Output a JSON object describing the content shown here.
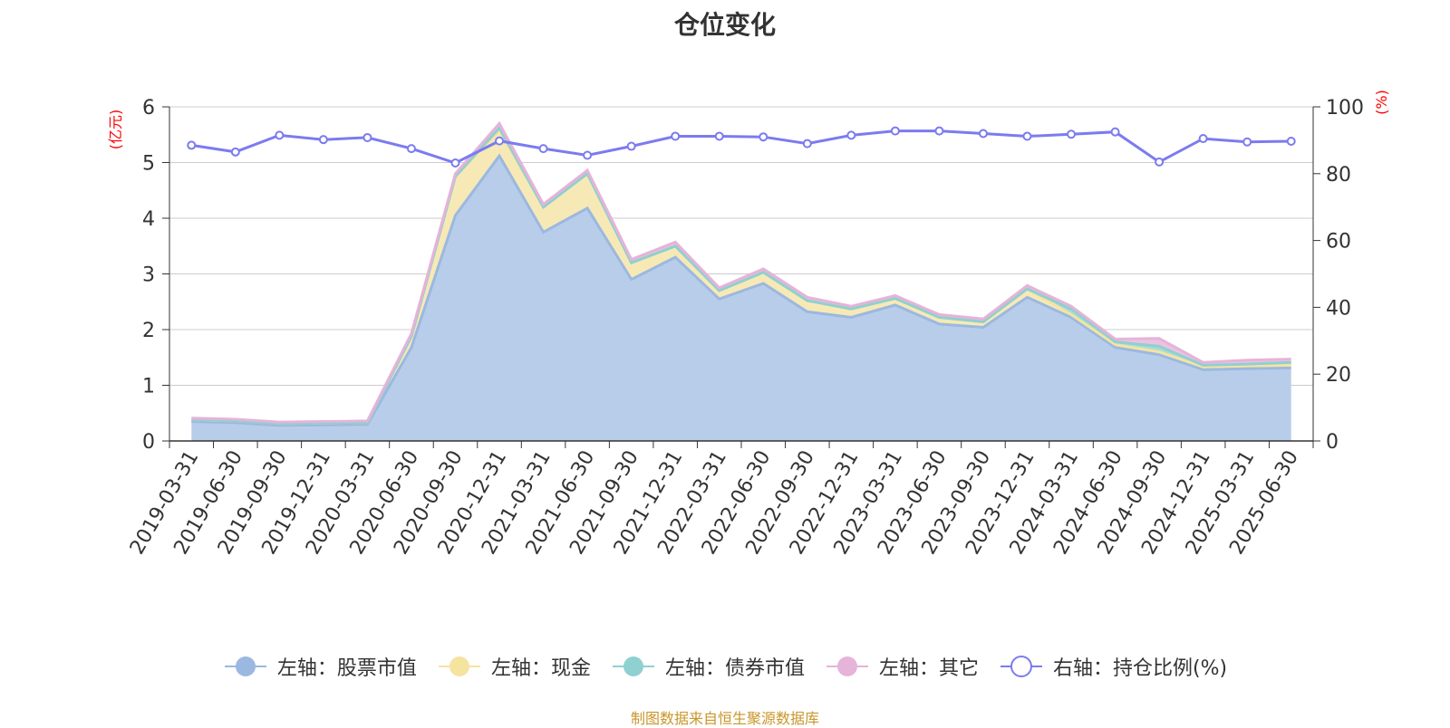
{
  "title": "仓位变化",
  "footer": "制图数据来自恒生聚源数据库",
  "axes": {
    "left_unit": "(亿元)",
    "right_unit": "(%)"
  },
  "colors": {
    "stock": "#9bb8e0",
    "stock_fill": "#b8cdea",
    "cash": "#f5e3a0",
    "cash_fill": "#f7e9b5",
    "bond": "#8fd0d0",
    "bond_fill": "#a8dcd9",
    "other": "#e6b3d9",
    "other_fill": "#ebc2e2",
    "ratio": "#7b7bf0",
    "axis_label_red": "#ff0000",
    "grid": "#cccccc"
  },
  "chart_data": {
    "type": "area",
    "title": "仓位变化",
    "categories": [
      "2019-03-31",
      "2019-06-30",
      "2019-09-30",
      "2019-12-31",
      "2020-03-31",
      "2020-06-30",
      "2020-09-30",
      "2020-12-31",
      "2021-03-31",
      "2021-06-30",
      "2021-09-30",
      "2021-12-31",
      "2022-03-31",
      "2022-06-30",
      "2022-09-30",
      "2022-12-31",
      "2023-03-31",
      "2023-06-30",
      "2023-09-30",
      "2023-12-31",
      "2024-03-31",
      "2024-06-30",
      "2024-09-30",
      "2024-12-31",
      "2025-03-31",
      "2025-06-30"
    ],
    "left_axis": {
      "label": "(亿元)",
      "ylim": [
        0,
        6
      ],
      "ticks": [
        0,
        1,
        2,
        3,
        4,
        5,
        6
      ]
    },
    "right_axis": {
      "label": "(%)",
      "ylim": [
        0,
        100
      ],
      "ticks": [
        0,
        20,
        40,
        60,
        80,
        100
      ]
    },
    "series": [
      {
        "name": "左轴：股票市值",
        "axis": "left",
        "type": "area",
        "values": [
          0.35,
          0.33,
          0.28,
          0.29,
          0.3,
          1.68,
          4.05,
          5.12,
          3.75,
          4.18,
          2.9,
          3.3,
          2.55,
          2.83,
          2.32,
          2.22,
          2.44,
          2.1,
          2.04,
          2.58,
          2.22,
          1.68,
          1.55,
          1.28,
          1.3,
          1.31
        ]
      },
      {
        "name": "左轴：现金",
        "axis": "left",
        "type": "area",
        "values": [
          0.03,
          0.03,
          0.03,
          0.03,
          0.03,
          0.2,
          0.7,
          0.45,
          0.45,
          0.62,
          0.3,
          0.2,
          0.15,
          0.2,
          0.2,
          0.15,
          0.12,
          0.12,
          0.1,
          0.15,
          0.05,
          0.05,
          0.05,
          0.05,
          0.05,
          0.05
        ]
      },
      {
        "name": "左轴：债券市值",
        "axis": "left",
        "type": "area",
        "values": [
          0,
          0,
          0,
          0,
          0,
          0,
          0,
          0.05,
          0,
          0,
          0,
          0,
          0,
          0,
          0,
          0,
          0,
          0,
          0,
          0,
          0.1,
          0.05,
          0.1,
          0.03,
          0.03,
          0.05
        ]
      },
      {
        "name": "左轴：其它",
        "axis": "left",
        "type": "area",
        "values": [
          0.03,
          0.03,
          0.03,
          0.03,
          0.03,
          0.05,
          0.05,
          0.08,
          0.05,
          0.06,
          0.06,
          0.07,
          0.05,
          0.06,
          0.06,
          0.05,
          0.05,
          0.05,
          0.05,
          0.06,
          0.05,
          0.05,
          0.14,
          0.05,
          0.07,
          0.06
        ]
      },
      {
        "name": "右轴：持仓比例(%)",
        "axis": "right",
        "type": "line",
        "values": [
          88.5,
          86.5,
          91.5,
          90.2,
          90.8,
          87.5,
          83.2,
          89.8,
          87.5,
          85.5,
          88.2,
          91.2,
          91.2,
          91.0,
          89.0,
          91.5,
          92.8,
          92.8,
          92.0,
          91.2,
          91.8,
          92.5,
          83.5,
          90.5,
          89.5,
          89.7
        ]
      }
    ],
    "grid": true,
    "legend_position": "bottom"
  }
}
